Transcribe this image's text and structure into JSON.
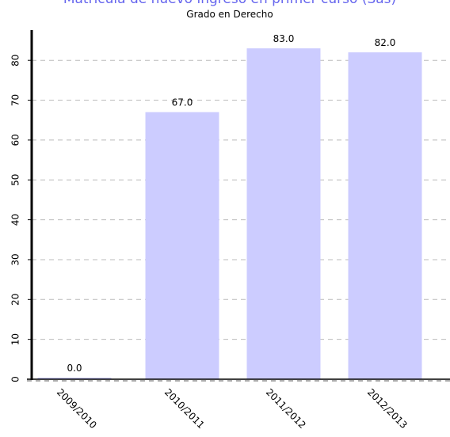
{
  "chart_data": {
    "type": "bar",
    "title": "Matrícula de nuevo ingreso en primer curso (Sas)",
    "subtitle": "Grado en Derecho",
    "categories": [
      "2009/2010",
      "2010/2011",
      "2011/2012",
      "2012/2013"
    ],
    "values": [
      0.0,
      67.0,
      83.0,
      82.0
    ],
    "value_labels": [
      "0.0",
      "67.0",
      "83.0",
      "82.0"
    ],
    "ylim": [
      0,
      88
    ],
    "yticks": [
      0,
      10,
      20,
      30,
      40,
      50,
      60,
      70,
      80
    ],
    "grid": true,
    "legend": "none",
    "colors": {
      "bar": "#ccccff",
      "title": "#6666ee",
      "grid": "#bbbbbb"
    }
  }
}
